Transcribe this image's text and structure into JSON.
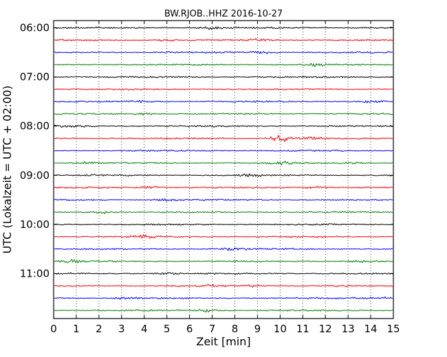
{
  "chart_data": {
    "type": "line",
    "title": "BW.RJOB..HHZ 2016-10-27",
    "xlabel": "Zeit  [min]",
    "ylabel": "UTC (Lokalzeit = UTC + 02:00)",
    "x_ticks": [
      "0",
      "1",
      "2",
      "3",
      "4",
      "5",
      "6",
      "7",
      "8",
      "9",
      "10",
      "11",
      "12",
      "13",
      "14",
      "15"
    ],
    "xlim": [
      0,
      15
    ],
    "y_ticks": [
      "06:00",
      "07:00",
      "08:00",
      "09:00",
      "10:00",
      "11:00"
    ],
    "grid": "vertical dotted",
    "trace_interval_min": 15,
    "trace_colors": [
      "#000000",
      "#ff0000",
      "#0000ff",
      "#008000"
    ],
    "series": [
      {
        "start": "06:00",
        "color": "#000000",
        "events": [
          {
            "minute": 7.0,
            "amp": 1.6
          }
        ]
      },
      {
        "start": "06:15",
        "color": "#ff0000",
        "events": [
          {
            "minute": 4.8,
            "amp": 1.5
          },
          {
            "minute": 9.2,
            "amp": 1.3
          }
        ]
      },
      {
        "start": "06:30",
        "color": "#0000ff",
        "events": [
          {
            "minute": 9.2,
            "amp": 1.8
          }
        ]
      },
      {
        "start": "06:45",
        "color": "#008000",
        "events": [
          {
            "minute": 11.5,
            "amp": 1.8
          }
        ]
      },
      {
        "start": "07:00",
        "color": "#000000",
        "events": []
      },
      {
        "start": "07:15",
        "color": "#ff0000",
        "events": []
      },
      {
        "start": "07:30",
        "color": "#0000ff",
        "events": [
          {
            "minute": 3.8,
            "amp": 1.4
          },
          {
            "minute": 14.0,
            "amp": 1.3
          }
        ]
      },
      {
        "start": "07:45",
        "color": "#008000",
        "events": [
          {
            "minute": 4.0,
            "amp": 1.5
          }
        ]
      },
      {
        "start": "08:00",
        "color": "#000000",
        "events": [
          {
            "minute": 0.8,
            "amp": 1.3
          }
        ]
      },
      {
        "start": "08:15",
        "color": "#ff0000",
        "events": [
          {
            "minute": 10.0,
            "amp": 4.2
          },
          {
            "minute": 11.4,
            "amp": 2.0
          }
        ]
      },
      {
        "start": "08:30",
        "color": "#0000ff",
        "events": []
      },
      {
        "start": "08:45",
        "color": "#008000",
        "events": [
          {
            "minute": 1.5,
            "amp": 1.3
          },
          {
            "minute": 10.0,
            "amp": 1.5
          },
          {
            "minute": 13.3,
            "amp": 1.4
          }
        ]
      },
      {
        "start": "09:00",
        "color": "#000000",
        "events": [
          {
            "minute": 8.6,
            "amp": 1.6
          }
        ]
      },
      {
        "start": "09:15",
        "color": "#ff0000",
        "events": [
          {
            "minute": 4.2,
            "amp": 1.7
          },
          {
            "minute": 11.6,
            "amp": 1.7
          }
        ]
      },
      {
        "start": "09:30",
        "color": "#0000ff",
        "events": [
          {
            "minute": 5.0,
            "amp": 1.4
          }
        ]
      },
      {
        "start": "09:45",
        "color": "#008000",
        "events": [
          {
            "minute": 2.2,
            "amp": 1.6
          }
        ]
      },
      {
        "start": "10:00",
        "color": "#000000",
        "events": []
      },
      {
        "start": "10:15",
        "color": "#ff0000",
        "events": [
          {
            "minute": 4.0,
            "amp": 2.2
          }
        ]
      },
      {
        "start": "10:30",
        "color": "#0000ff",
        "events": [
          {
            "minute": 7.9,
            "amp": 2.0
          }
        ]
      },
      {
        "start": "10:45",
        "color": "#008000",
        "events": [
          {
            "minute": 0.8,
            "amp": 1.9
          },
          {
            "minute": 13.4,
            "amp": 1.4
          }
        ]
      },
      {
        "start": "11:00",
        "color": "#000000",
        "events": [
          {
            "minute": 5.0,
            "amp": 1.4
          }
        ]
      },
      {
        "start": "11:15",
        "color": "#ff0000",
        "events": [
          {
            "minute": 7.1,
            "amp": 1.5
          },
          {
            "minute": 8.8,
            "amp": 1.4
          }
        ]
      },
      {
        "start": "11:30",
        "color": "#0000ff",
        "events": [
          {
            "minute": 3.2,
            "amp": 1.6
          },
          {
            "minute": 14.5,
            "amp": 1.6
          }
        ]
      },
      {
        "start": "11:45",
        "color": "#008000",
        "events": [
          {
            "minute": 6.8,
            "amp": 1.9
          }
        ]
      }
    ]
  }
}
